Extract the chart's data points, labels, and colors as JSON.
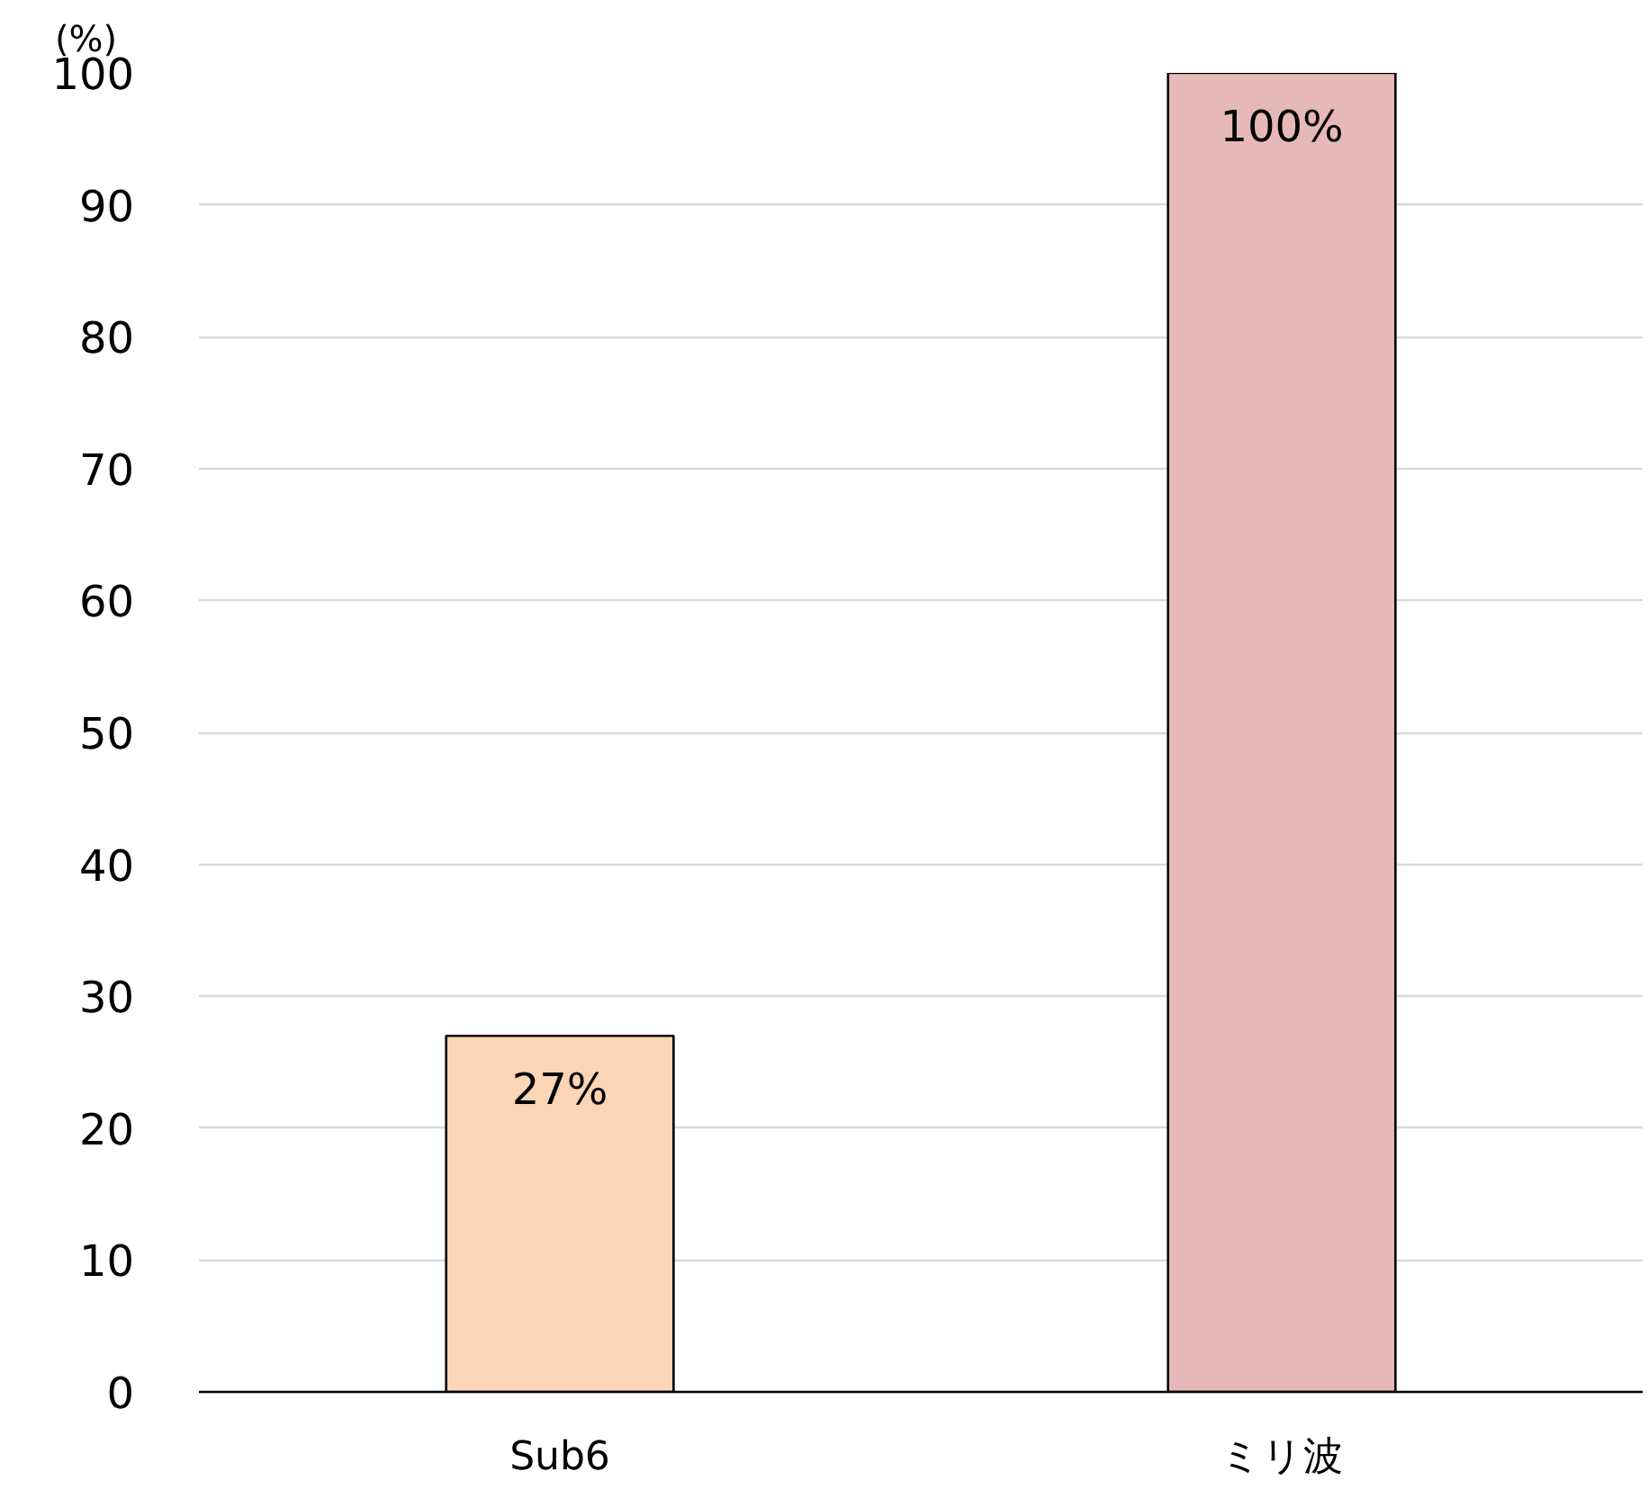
{
  "chart_data": {
    "type": "bar",
    "ylabel": "(%)",
    "categories": [
      "Sub6",
      "ミリ波"
    ],
    "values": [
      27,
      100
    ],
    "colors": [
      "#fbd5b5",
      "#e6b9b8"
    ],
    "value_labels": [
      "27%",
      "100%"
    ],
    "ylim": [
      0,
      100
    ],
    "yticks": [
      0,
      10,
      20,
      30,
      40,
      50,
      60,
      70,
      80,
      90,
      100
    ],
    "grid": "y"
  }
}
